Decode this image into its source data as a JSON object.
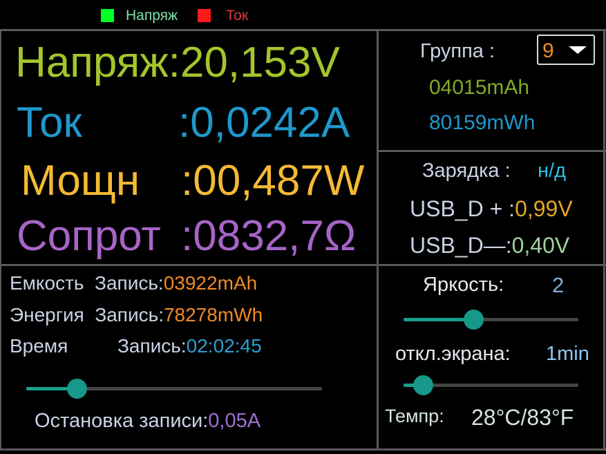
{
  "legend": [
    {
      "label": "Напряж",
      "color": "#00ff22",
      "text_color": "#7fe0b0"
    },
    {
      "label": "Ток",
      "color": "#ff1a1a",
      "text_color": "#e03a3a"
    }
  ],
  "main": {
    "voltage": {
      "label": "Напряж:",
      "value": "20,153V",
      "color": "#a3c52c"
    },
    "current": {
      "label": "Ток",
      "sep": ":",
      "value": "0,0242A",
      "color": "#1e98cc"
    },
    "power": {
      "label": "Мощн",
      "sep": ":",
      "value": "00,487W",
      "color": "#f4b935"
    },
    "resistance": {
      "label": "Сопрот",
      "sep": ":",
      "value": "0832,7Ω",
      "color": "#a765c8"
    }
  },
  "group": {
    "label": "Группа :",
    "selected": "9",
    "mah": "04015mAh",
    "mwh": "80159mWh"
  },
  "charging": {
    "label": "Зарядка :",
    "value": "н/д",
    "dplus_label": "USB_D + :",
    "dplus": "0,99V",
    "dminus_label": "USB_D—:",
    "dminus": "0,40V"
  },
  "record": {
    "capacity_label": "Емкость",
    "capacity_rec": "Запись:",
    "capacity": "03922mAh",
    "energy_label": "Энергия",
    "energy_rec": "Запись:",
    "energy": "78278mWh",
    "time_label": "Время",
    "time_rec": "Запись:",
    "time": "02:02:45",
    "stop_slider_fraction": 0.17,
    "stop_label": "Остановка записи:",
    "stop_value": "0,05A"
  },
  "settings": {
    "brightness_label": "Яркость:",
    "brightness": "2",
    "brightness_fraction": 0.4,
    "screen_off_label": "откл.экрана:",
    "screen_off": "1min",
    "screen_off_fraction": 0.11,
    "temp_label": "Темпр:",
    "temp": "28°C/83°F"
  }
}
